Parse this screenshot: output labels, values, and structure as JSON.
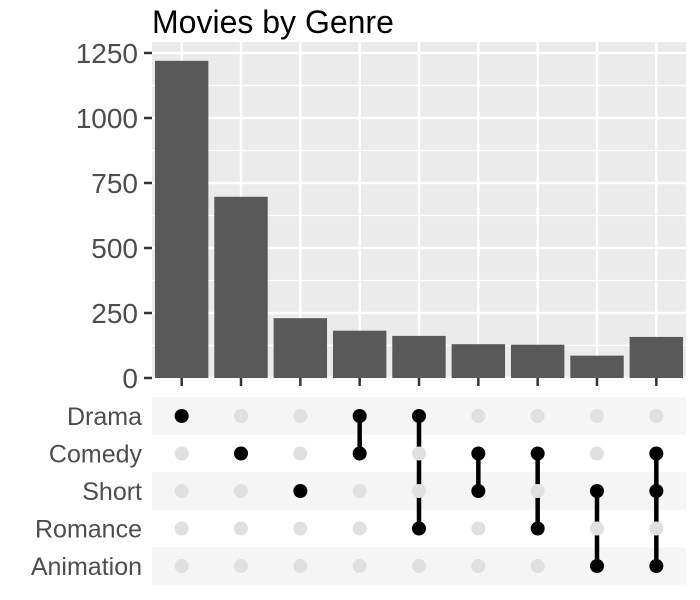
{
  "chart_data": {
    "type": "bar",
    "title": "Movies by Genre",
    "xlabel": "",
    "ylabel": "",
    "ylim": [
      0,
      1250
    ],
    "yticks": [
      0,
      250,
      500,
      750,
      1000,
      1250
    ],
    "grid": true,
    "sets": [
      "Drama",
      "Comedy",
      "Short",
      "Romance",
      "Animation"
    ],
    "intersections": [
      {
        "members": [
          "Drama"
        ],
        "value": 1220
      },
      {
        "members": [
          "Comedy"
        ],
        "value": 697
      },
      {
        "members": [
          "Short"
        ],
        "value": 230
      },
      {
        "members": [
          "Drama",
          "Comedy"
        ],
        "value": 182
      },
      {
        "members": [
          "Drama",
          "Romance"
        ],
        "value": 162
      },
      {
        "members": [
          "Comedy",
          "Short"
        ],
        "value": 130
      },
      {
        "members": [
          "Comedy",
          "Romance"
        ],
        "value": 128
      },
      {
        "members": [
          "Short",
          "Animation"
        ],
        "value": 86
      },
      {
        "members": [
          "Comedy",
          "Short",
          "Animation"
        ],
        "value": 158
      }
    ]
  },
  "colors": {
    "panel_bg": "#ebebeb",
    "grid_line": "#ffffff",
    "bar": "#595959",
    "axis_text": "#4d4d4d",
    "dot_active": "#000000",
    "dot_inactive": "#e0e0e0",
    "matrix_row_shade": "#f5f5f5"
  }
}
